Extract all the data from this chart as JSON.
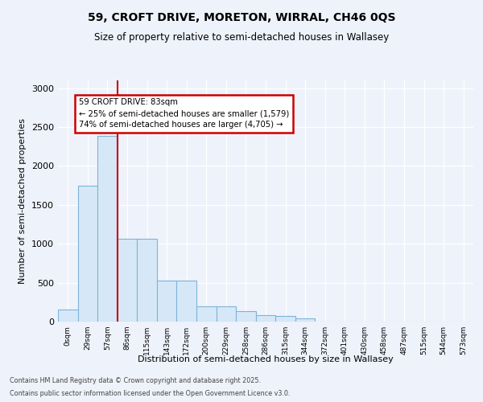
{
  "title_line1": "59, CROFT DRIVE, MORETON, WIRRAL, CH46 0QS",
  "title_line2": "Size of property relative to semi-detached houses in Wallasey",
  "xlabel": "Distribution of semi-detached houses by size in Wallasey",
  "ylabel": "Number of semi-detached properties",
  "bin_labels": [
    "0sqm",
    "29sqm",
    "57sqm",
    "86sqm",
    "115sqm",
    "143sqm",
    "172sqm",
    "200sqm",
    "229sqm",
    "258sqm",
    "286sqm",
    "315sqm",
    "344sqm",
    "372sqm",
    "401sqm",
    "430sqm",
    "458sqm",
    "487sqm",
    "515sqm",
    "544sqm",
    "573sqm"
  ],
  "bar_values": [
    160,
    1750,
    2390,
    1060,
    1060,
    530,
    530,
    200,
    200,
    130,
    80,
    75,
    40,
    0,
    0,
    0,
    0,
    0,
    0,
    0,
    0
  ],
  "bar_color": "#d6e8f7",
  "bar_edge_color": "#7fb3d8",
  "vline_color": "#cc0000",
  "vline_x": 2.5,
  "annotation_text": "59 CROFT DRIVE: 83sqm\n← 25% of semi-detached houses are smaller (1,579)\n74% of semi-detached houses are larger (4,705) →",
  "annotation_box_facecolor": "#ffffff",
  "annotation_box_edgecolor": "#cc0000",
  "ylim_max": 3100,
  "yticks": [
    0,
    500,
    1000,
    1500,
    2000,
    2500,
    3000
  ],
  "footer_line1": "Contains HM Land Registry data © Crown copyright and database right 2025.",
  "footer_line2": "Contains public sector information licensed under the Open Government Licence v3.0.",
  "bg_color": "#eef2fb",
  "grid_color": "#ffffff"
}
